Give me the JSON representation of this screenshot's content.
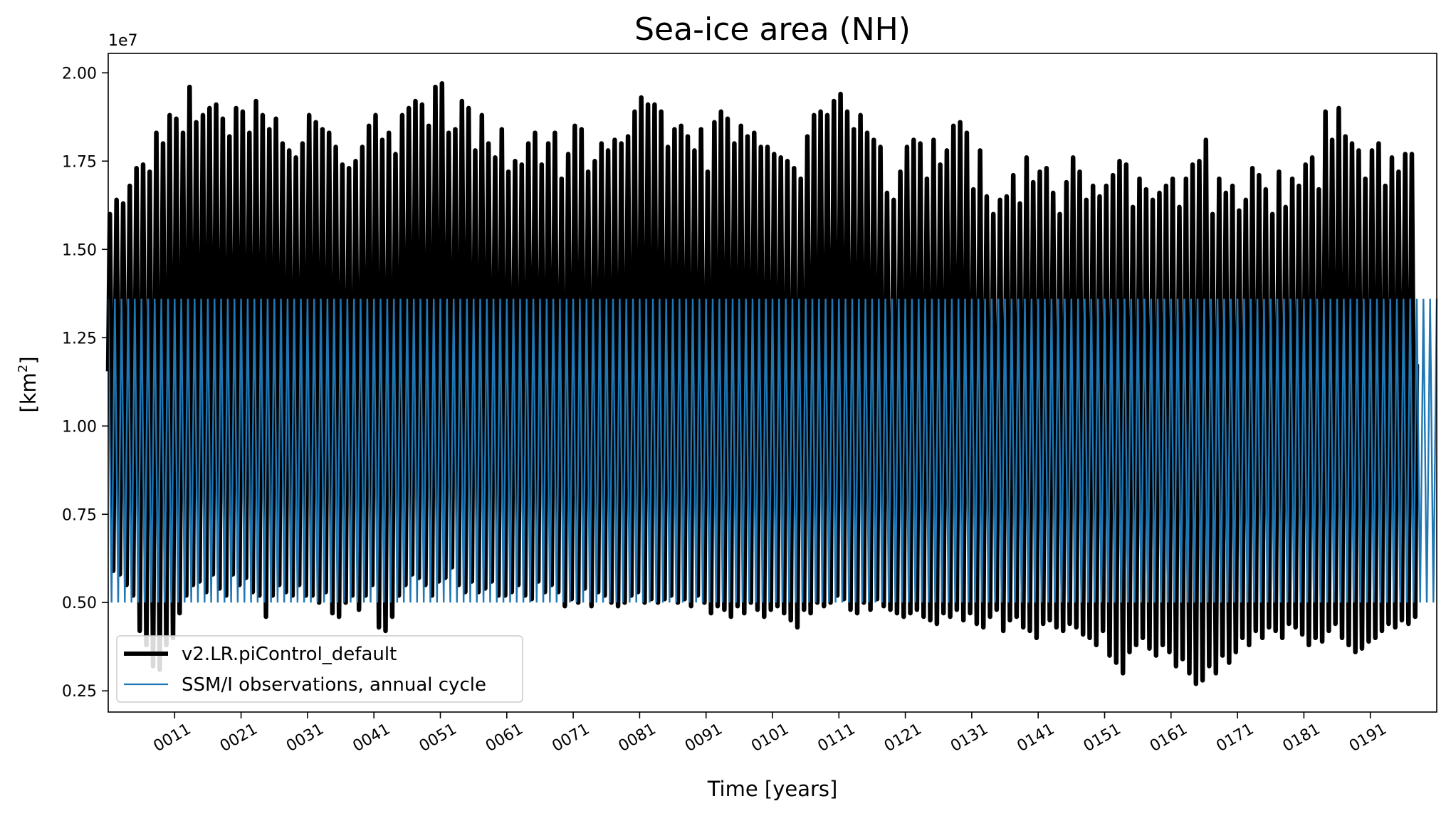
{
  "chart_data": {
    "type": "line",
    "title": "Sea-ice area (NH)",
    "xlabel": "Time [years]",
    "ylabel_base": "[km",
    "ylabel_sup": "2",
    "ylabel_close": "]",
    "y_offset_label": "1e7",
    "ylim": [
      0.19,
      2.055
    ],
    "xlim": [
      1,
      201
    ],
    "grid": false,
    "legend_position": "lower-left",
    "x_ticks": [
      {
        "value": 11,
        "label": "0011"
      },
      {
        "value": 21,
        "label": "0021"
      },
      {
        "value": 31,
        "label": "0031"
      },
      {
        "value": 41,
        "label": "0041"
      },
      {
        "value": 51,
        "label": "0051"
      },
      {
        "value": 61,
        "label": "0061"
      },
      {
        "value": 71,
        "label": "0071"
      },
      {
        "value": 81,
        "label": "0081"
      },
      {
        "value": 91,
        "label": "0091"
      },
      {
        "value": 101,
        "label": "0101"
      },
      {
        "value": 111,
        "label": "0111"
      },
      {
        "value": 121,
        "label": "0121"
      },
      {
        "value": 131,
        "label": "0131"
      },
      {
        "value": 141,
        "label": "0141"
      },
      {
        "value": 151,
        "label": "0151"
      },
      {
        "value": 161,
        "label": "0161"
      },
      {
        "value": 171,
        "label": "0171"
      },
      {
        "value": 181,
        "label": "0181"
      },
      {
        "value": 191,
        "label": "0191"
      }
    ],
    "y_ticks": [
      {
        "value": 0.25,
        "label": "0.25"
      },
      {
        "value": 0.5,
        "label": "0.50"
      },
      {
        "value": 0.75,
        "label": "0.75"
      },
      {
        "value": 1.0,
        "label": "1.00"
      },
      {
        "value": 1.25,
        "label": "1.25"
      },
      {
        "value": 1.5,
        "label": "1.50"
      },
      {
        "value": 1.75,
        "label": "1.75"
      },
      {
        "value": 2.0,
        "label": "2.00"
      }
    ],
    "series": [
      {
        "name": "v2.LR.piControl_default",
        "color": "#000000",
        "style": "seasonal-cycle",
        "year_start": 1,
        "annual_max": [
          1.6,
          1.64,
          1.63,
          1.68,
          1.73,
          1.74,
          1.72,
          1.83,
          1.8,
          1.88,
          1.87,
          1.83,
          1.96,
          1.86,
          1.88,
          1.9,
          1.91,
          1.87,
          1.82,
          1.9,
          1.89,
          1.83,
          1.92,
          1.88,
          1.84,
          1.87,
          1.8,
          1.78,
          1.76,
          1.8,
          1.88,
          1.86,
          1.84,
          1.83,
          1.79,
          1.74,
          1.73,
          1.75,
          1.79,
          1.85,
          1.88,
          1.81,
          1.83,
          1.77,
          1.88,
          1.9,
          1.92,
          1.91,
          1.85,
          1.96,
          1.97,
          1.83,
          1.84,
          1.92,
          1.9,
          1.78,
          1.88,
          1.8,
          1.76,
          1.84,
          1.72,
          1.75,
          1.74,
          1.8,
          1.83,
          1.74,
          1.8,
          1.83,
          1.7,
          1.77,
          1.85,
          1.84,
          1.72,
          1.75,
          1.8,
          1.78,
          1.81,
          1.8,
          1.82,
          1.89,
          1.93,
          1.91,
          1.91,
          1.89,
          1.79,
          1.84,
          1.85,
          1.82,
          1.78,
          1.84,
          1.72,
          1.86,
          1.89,
          1.87,
          1.8,
          1.85,
          1.82,
          1.83,
          1.79,
          1.79,
          1.77,
          1.76,
          1.75,
          1.73,
          1.7,
          1.82,
          1.88,
          1.89,
          1.88,
          1.92,
          1.94,
          1.89,
          1.84,
          1.88,
          1.83,
          1.81,
          1.79,
          1.66,
          1.64,
          1.72,
          1.79,
          1.81,
          1.8,
          1.7,
          1.81,
          1.74,
          1.78,
          1.85,
          1.86,
          1.83,
          1.67,
          1.78,
          1.65,
          1.6,
          1.64,
          1.65,
          1.71,
          1.63,
          1.76,
          1.69,
          1.72,
          1.73,
          1.66,
          1.6,
          1.69,
          1.76,
          1.72,
          1.64,
          1.68,
          1.65,
          1.68,
          1.71,
          1.75,
          1.74,
          1.62,
          1.7,
          1.67,
          1.64,
          1.66,
          1.68,
          1.7,
          1.62,
          1.7,
          1.74,
          1.75,
          1.81,
          1.6,
          1.7,
          1.66,
          1.68,
          1.61,
          1.64,
          1.73,
          1.71,
          1.67,
          1.6,
          1.72,
          1.62,
          1.7,
          1.68,
          1.74,
          1.76,
          1.67,
          1.89,
          1.81,
          1.9,
          1.82,
          1.8,
          1.78,
          1.7,
          1.78,
          1.8,
          1.68,
          1.76,
          1.72,
          1.77,
          1.77
        ],
        "annual_min": [
          0.59,
          0.58,
          0.55,
          0.52,
          0.42,
          0.38,
          0.32,
          0.31,
          0.38,
          0.4,
          0.47,
          0.52,
          0.55,
          0.56,
          0.53,
          0.58,
          0.54,
          0.52,
          0.58,
          0.55,
          0.57,
          0.53,
          0.52,
          0.46,
          0.52,
          0.55,
          0.53,
          0.52,
          0.55,
          0.52,
          0.52,
          0.5,
          0.53,
          0.47,
          0.46,
          0.5,
          0.52,
          0.48,
          0.52,
          0.55,
          0.43,
          0.42,
          0.46,
          0.52,
          0.55,
          0.58,
          0.57,
          0.55,
          0.52,
          0.56,
          0.57,
          0.6,
          0.55,
          0.53,
          0.56,
          0.53,
          0.54,
          0.56,
          0.52,
          0.52,
          0.53,
          0.55,
          0.52,
          0.51,
          0.56,
          0.53,
          0.55,
          0.53,
          0.49,
          0.51,
          0.5,
          0.54,
          0.49,
          0.53,
          0.52,
          0.5,
          0.49,
          0.5,
          0.52,
          0.53,
          0.5,
          0.51,
          0.5,
          0.51,
          0.52,
          0.5,
          0.51,
          0.49,
          0.52,
          0.5,
          0.47,
          0.49,
          0.48,
          0.46,
          0.49,
          0.47,
          0.5,
          0.48,
          0.46,
          0.48,
          0.49,
          0.47,
          0.45,
          0.43,
          0.48,
          0.47,
          0.5,
          0.49,
          0.5,
          0.52,
          0.51,
          0.48,
          0.47,
          0.5,
          0.48,
          0.51,
          0.49,
          0.48,
          0.47,
          0.46,
          0.47,
          0.48,
          0.46,
          0.45,
          0.44,
          0.47,
          0.46,
          0.48,
          0.45,
          0.47,
          0.44,
          0.43,
          0.46,
          0.48,
          0.42,
          0.45,
          0.46,
          0.43,
          0.42,
          0.4,
          0.44,
          0.45,
          0.43,
          0.42,
          0.44,
          0.43,
          0.41,
          0.4,
          0.38,
          0.42,
          0.35,
          0.33,
          0.3,
          0.36,
          0.38,
          0.4,
          0.37,
          0.35,
          0.38,
          0.36,
          0.32,
          0.34,
          0.3,
          0.27,
          0.28,
          0.32,
          0.3,
          0.35,
          0.33,
          0.36,
          0.4,
          0.38,
          0.42,
          0.4,
          0.43,
          0.42,
          0.4,
          0.44,
          0.43,
          0.41,
          0.38,
          0.4,
          0.39,
          0.42,
          0.44,
          0.4,
          0.38,
          0.36,
          0.37,
          0.39,
          0.4,
          0.42,
          0.44,
          0.43,
          0.45,
          0.44,
          0.46,
          0.47,
          0.48
        ]
      },
      {
        "name": "SSM/I observations, annual cycle",
        "color": "#1f77b4",
        "style": "seasonal-cycle",
        "max": 1.36,
        "min": 0.5
      }
    ]
  }
}
